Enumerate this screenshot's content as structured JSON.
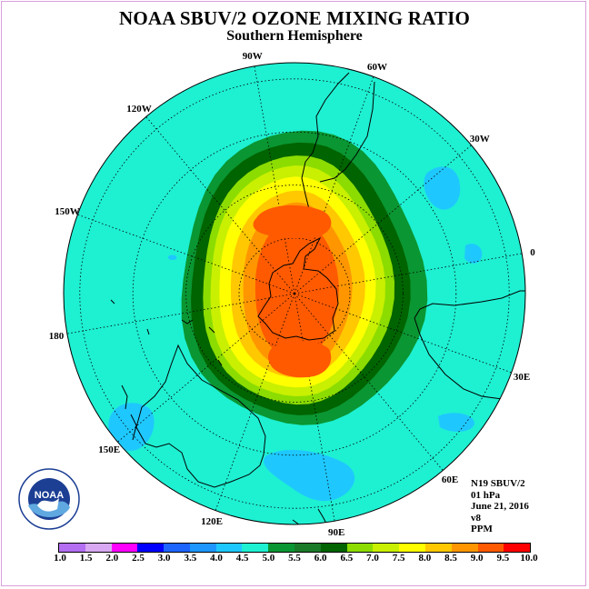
{
  "title": "NOAA SBUV/2 OZONE MIXING RATIO",
  "subtitle": "Southern Hemisphere",
  "longitude_labels": [
    "90W",
    "60W",
    "30W",
    "0",
    "30E",
    "60E",
    "90E",
    "120E",
    "150E",
    "180",
    "150W",
    "120W"
  ],
  "info": {
    "instrument": "N19 SBUV/2",
    "level": "01 hPa",
    "date": "June 21, 2016",
    "version": "v8",
    "units": "PPM"
  },
  "logo": {
    "text": "NOAA",
    "icon": "noaa-logo-icon"
  },
  "colorbar": {
    "ticks": [
      "1.0",
      "1.5",
      "2.0",
      "2.5",
      "3.0",
      "3.5",
      "4.0",
      "4.5",
      "5.0",
      "5.5",
      "6.0",
      "6.5",
      "7.0",
      "7.5",
      "8.0",
      "8.5",
      "9.0",
      "9.5",
      "10.0"
    ],
    "colors": [
      "#b36ef2",
      "#d8a8f2",
      "#ff00ff",
      "#0000ff",
      "#1e64ff",
      "#1e96ff",
      "#1ec8ff",
      "#1ef0d2",
      "#0a9632",
      "#1a7a28",
      "#006400",
      "#8cdc00",
      "#c8f000",
      "#ffff00",
      "#ffc800",
      "#ff9600",
      "#ff5a00",
      "#ff0000",
      "#8b5a3c"
    ]
  },
  "map_colors": {
    "background": "#1ef0d2",
    "low": "#1ec8ff",
    "ring": [
      "#0a9632",
      "#006400",
      "#8cdc00",
      "#c8f000",
      "#ffff00",
      "#ffc800",
      "#ff9600",
      "#ff5a00"
    ]
  }
}
